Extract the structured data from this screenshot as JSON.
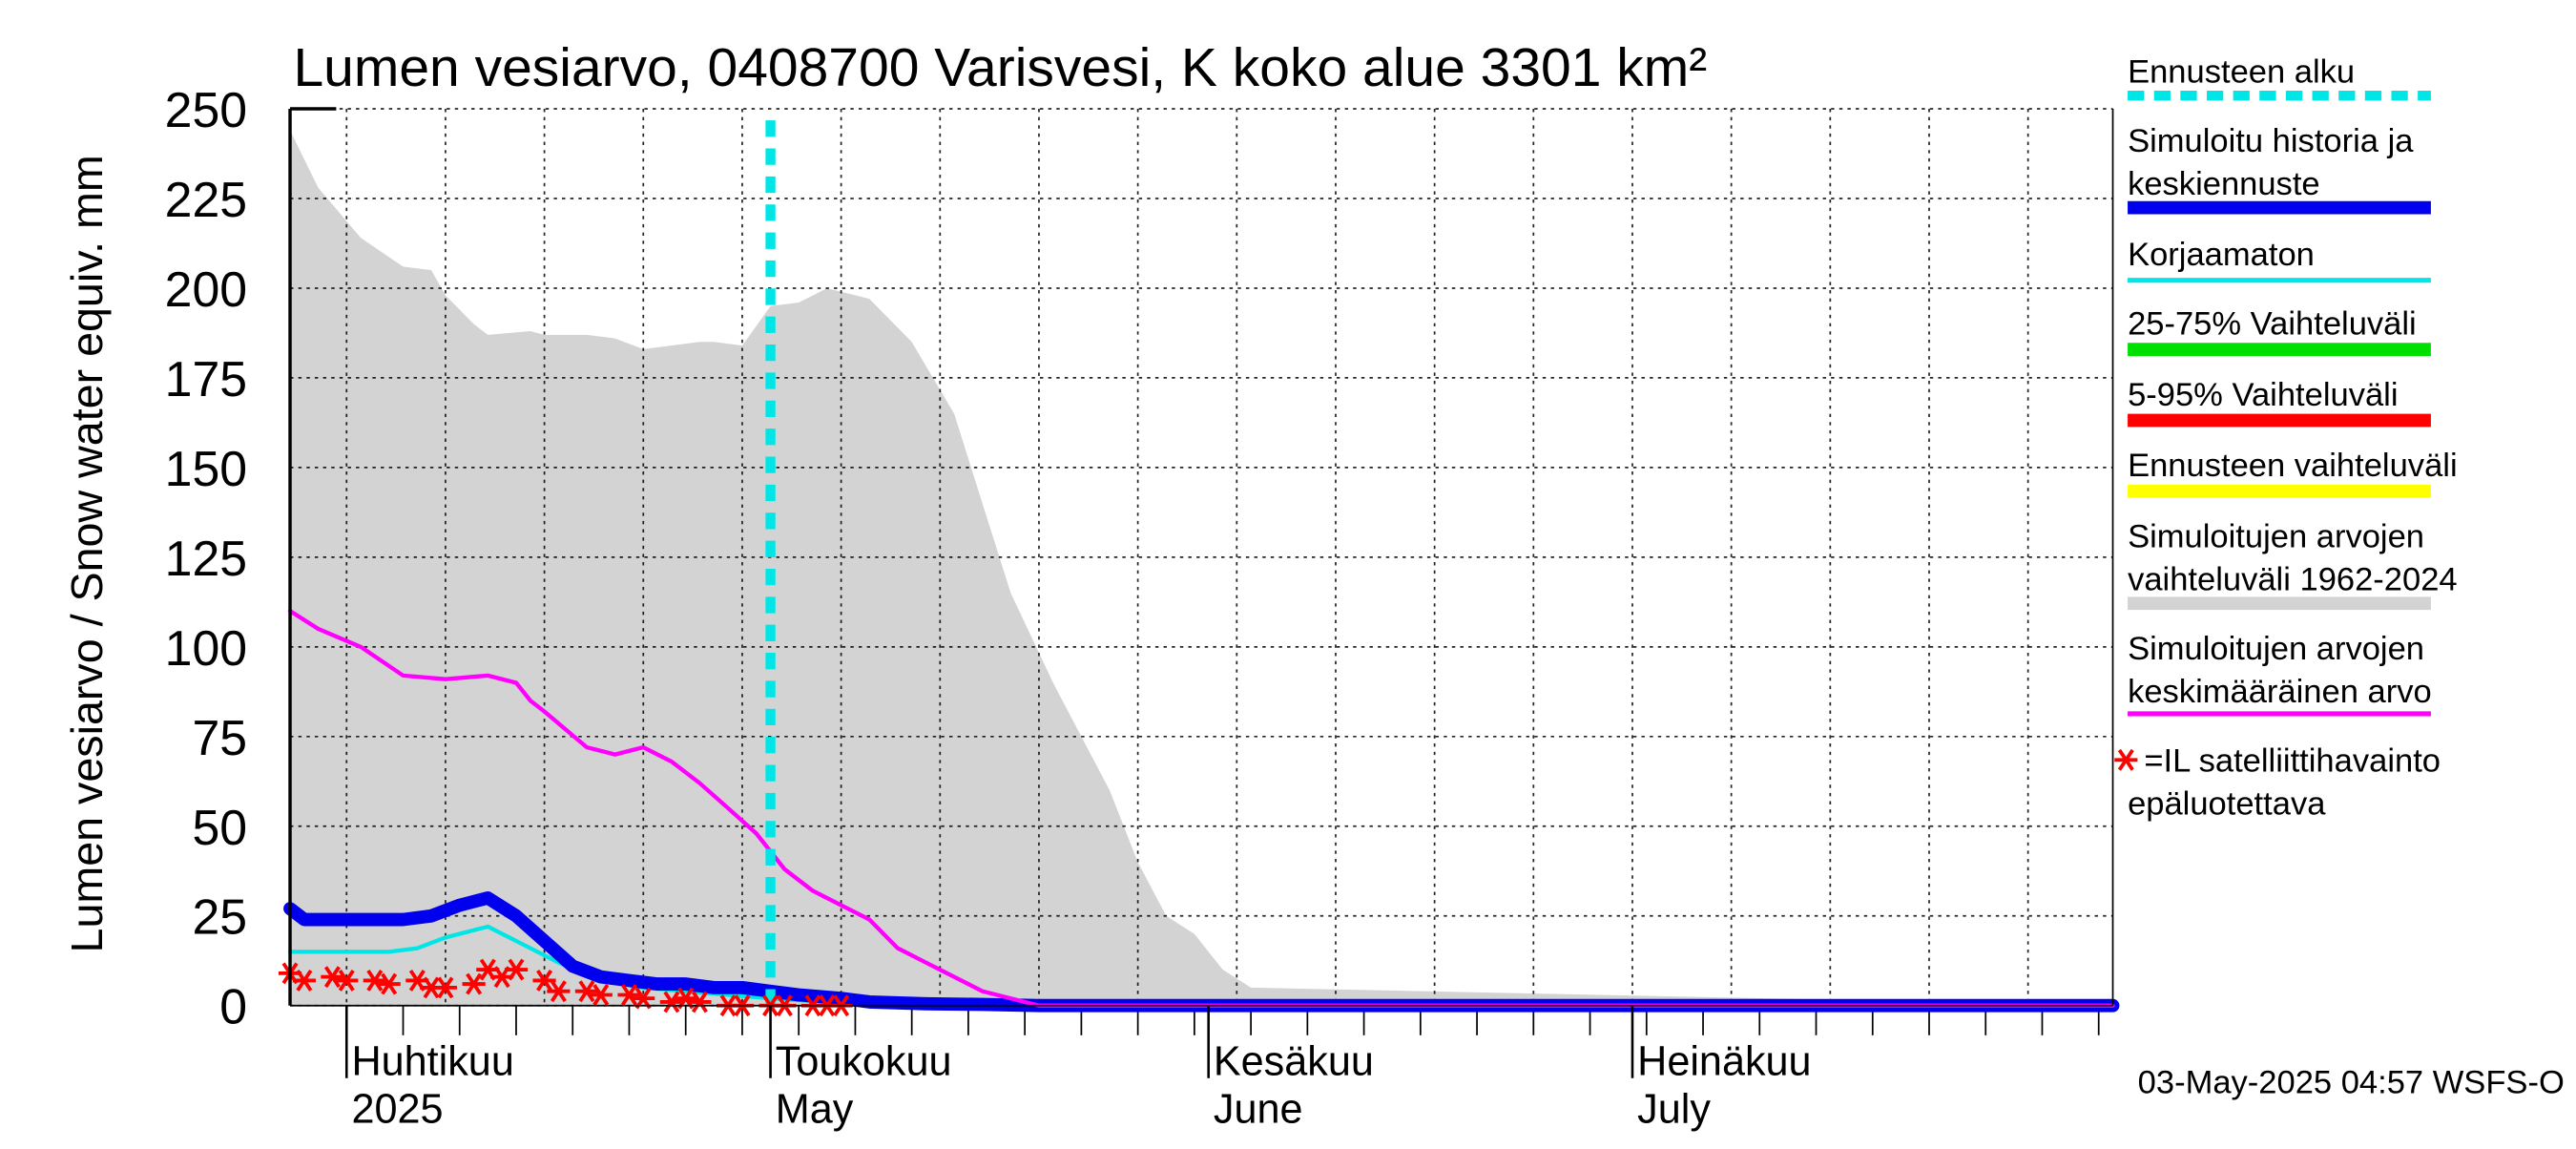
{
  "chart_data": {
    "type": "area",
    "title": "Lumen vesiarvo, 0408700 Varisvesi, K koko alue 3301 km²",
    "ylabel": "Lumen vesiarvo / Snow water equiv.    mm",
    "ylim": [
      0,
      250
    ],
    "yticks": [
      0,
      25,
      50,
      75,
      100,
      125,
      150,
      175,
      200,
      225,
      250
    ],
    "xlim": [
      "2025-03-28",
      "2025-08-04"
    ],
    "grid": true,
    "legend_position": "right",
    "x_axis_labels": [
      {
        "date": "2025-04-01",
        "line1": "Huhtikuu",
        "line2": "2025"
      },
      {
        "date": "2025-05-01",
        "line1": "Toukokuu",
        "line2": "May"
      },
      {
        "date": "2025-06-01",
        "line1": "Kesäkuu",
        "line2": "June"
      },
      {
        "date": "2025-07-01",
        "line1": "Heinäkuu",
        "line2": "July"
      }
    ],
    "forecast_start": "2025-05-01",
    "series": [
      {
        "name": "Simuloitujen arvojen vaihteluväli 1962-2024",
        "kind": "band",
        "color": "#d3d3d3",
        "x": [
          "2025-03-28",
          "2025-03-30",
          "2025-04-02",
          "2025-04-05",
          "2025-04-07",
          "2025-04-08",
          "2025-04-10",
          "2025-04-11",
          "2025-04-14",
          "2025-04-15",
          "2025-04-18",
          "2025-04-20",
          "2025-04-22",
          "2025-04-26",
          "2025-04-27",
          "2025-04-29",
          "2025-05-01",
          "2025-05-03",
          "2025-05-05",
          "2025-05-08",
          "2025-05-11",
          "2025-05-14",
          "2025-05-16",
          "2025-05-18",
          "2025-05-21",
          "2025-05-23",
          "2025-05-25",
          "2025-05-27",
          "2025-05-29",
          "2025-05-31",
          "2025-06-02",
          "2025-06-04",
          "2025-08-04"
        ],
        "values": [
          244,
          228,
          214,
          206,
          205,
          198,
          190,
          187,
          188,
          187,
          187,
          186,
          183,
          185,
          185,
          184,
          195,
          196,
          200,
          197,
          185,
          165,
          140,
          115,
          90,
          75,
          60,
          40,
          25,
          20,
          10,
          5,
          0
        ]
      },
      {
        "name": "Simuloitujen arvojen keskimääräinen arvo",
        "kind": "line",
        "color": "#ff00ff",
        "x": [
          "2025-03-28",
          "2025-03-30",
          "2025-04-02",
          "2025-04-05",
          "2025-04-08",
          "2025-04-11",
          "2025-04-13",
          "2025-04-14",
          "2025-04-15",
          "2025-04-18",
          "2025-04-20",
          "2025-04-22",
          "2025-04-24",
          "2025-04-26",
          "2025-04-28",
          "2025-04-30",
          "2025-05-02",
          "2025-05-04",
          "2025-05-06",
          "2025-05-08",
          "2025-05-10",
          "2025-05-12",
          "2025-05-14",
          "2025-05-16",
          "2025-05-20",
          "2025-08-04"
        ],
        "values": [
          110,
          105,
          100,
          92,
          91,
          92,
          90,
          85,
          82,
          72,
          70,
          72,
          68,
          62,
          55,
          48,
          38,
          32,
          28,
          24,
          16,
          12,
          8,
          4,
          0,
          0
        ]
      },
      {
        "name": "Simuloitu historia ja keskiennuste",
        "kind": "line",
        "color": "#0000ee",
        "x": [
          "2025-03-28",
          "2025-03-29",
          "2025-04-01",
          "2025-04-03",
          "2025-04-05",
          "2025-04-07",
          "2025-04-09",
          "2025-04-11",
          "2025-04-13",
          "2025-04-15",
          "2025-04-17",
          "2025-04-19",
          "2025-04-21",
          "2025-04-23",
          "2025-04-25",
          "2025-04-27",
          "2025-04-29",
          "2025-05-01",
          "2025-05-03",
          "2025-05-06",
          "2025-05-08",
          "2025-05-12",
          "2025-05-16",
          "2025-05-20",
          "2025-08-04"
        ],
        "values": [
          27,
          24,
          24,
          24,
          24,
          25,
          28,
          30,
          25,
          18,
          11,
          8,
          7,
          6,
          6,
          5,
          5,
          4,
          3,
          2,
          1,
          0.5,
          0.3,
          0,
          0
        ]
      },
      {
        "name": "Korjaamaton",
        "kind": "line",
        "color": "#00e5e5",
        "x": [
          "2025-03-28",
          "2025-03-30",
          "2025-04-02",
          "2025-04-04",
          "2025-04-06",
          "2025-04-08",
          "2025-04-11",
          "2025-04-13",
          "2025-04-16",
          "2025-04-19",
          "2025-04-22",
          "2025-04-25",
          "2025-04-28",
          "2025-05-01",
          "2025-05-05",
          "2025-05-10",
          "2025-05-16",
          "2025-05-20",
          "2025-08-04"
        ],
        "values": [
          15,
          15,
          15,
          15,
          16,
          19,
          22,
          18,
          12,
          7,
          5,
          4,
          3,
          2,
          1,
          0.5,
          0.3,
          0,
          0
        ]
      },
      {
        "name": "=IL satelliittihavainto epäluotettava",
        "kind": "markers",
        "color": "#ff0000",
        "x": [
          "2025-03-28",
          "2025-03-29",
          "2025-03-31",
          "2025-04-01",
          "2025-04-03",
          "2025-04-04",
          "2025-04-06",
          "2025-04-07",
          "2025-04-08",
          "2025-04-10",
          "2025-04-11",
          "2025-04-12",
          "2025-04-13",
          "2025-04-15",
          "2025-04-16",
          "2025-04-18",
          "2025-04-19",
          "2025-04-21",
          "2025-04-22",
          "2025-04-24",
          "2025-04-25",
          "2025-04-26",
          "2025-04-28",
          "2025-04-29",
          "2025-05-01",
          "2025-05-02",
          "2025-05-04",
          "2025-05-05",
          "2025-05-06"
        ],
        "values": [
          9,
          7,
          8,
          7,
          7,
          6,
          7,
          5,
          5,
          6,
          10,
          8,
          10,
          7,
          4,
          4,
          3,
          3,
          2,
          1,
          2,
          1,
          0,
          0,
          0,
          0,
          0,
          0,
          0
        ]
      }
    ],
    "legend": [
      {
        "label": "Ennusteen alku",
        "style": "dashed",
        "color": "#00e5e5"
      },
      {
        "label": "Simuloitu historia ja keskiennuste",
        "style": "thick",
        "color": "#0000ee"
      },
      {
        "label": "Korjaamaton",
        "style": "line",
        "color": "#00e5e5"
      },
      {
        "label": "25-75% Vaihteluväli",
        "style": "thick",
        "color": "#00e000"
      },
      {
        "label": "5-95% Vaihteluväli",
        "style": "thick",
        "color": "#ff0000"
      },
      {
        "label": "Ennusteen vaihteluväli",
        "style": "thick",
        "color": "#ffff00"
      },
      {
        "label": "Simuloitujen arvojen vaihteluväli 1962-2024",
        "style": "thick",
        "color": "#d3d3d3"
      },
      {
        "label": "Simuloitujen arvojen keskimääräinen arvo",
        "style": "line",
        "color": "#ff00ff"
      },
      {
        "label": "=IL satelliittihavainto epäluotettava",
        "style": "marker",
        "color": "#ff0000"
      }
    ]
  },
  "timestamp": "03-May-2025 04:57 WSFS-O"
}
